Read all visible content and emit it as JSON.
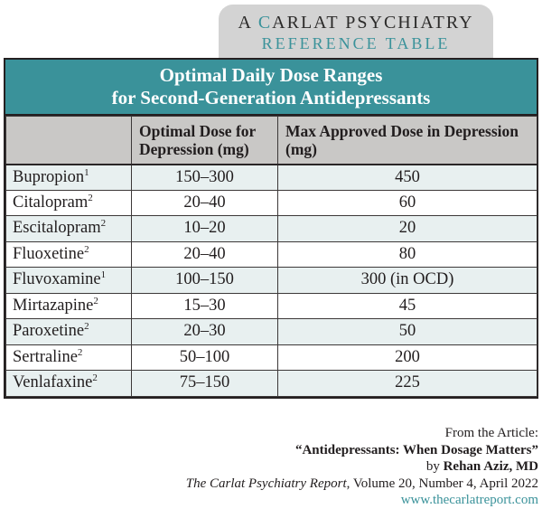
{
  "badge": {
    "line1_prefix": "A ",
    "line1_c": "C",
    "line1_rest": "ARLAT PSYCHIATRY",
    "line2": "REFERENCE TABLE"
  },
  "table": {
    "title_line1": "Optimal Daily Dose Ranges",
    "title_line2": "for Second-Generation Antidepressants",
    "columns": [
      "",
      "Optimal Dose for Depression (mg)",
      "Max Approved Dose in Depression (mg)"
    ],
    "rows": [
      {
        "name": "Bupropion",
        "sup": "1",
        "optimal": "150–300",
        "max": "450"
      },
      {
        "name": "Citalopram",
        "sup": "2",
        "optimal": "20–40",
        "max": "60"
      },
      {
        "name": "Escitalopram",
        "sup": "2",
        "optimal": "10–20",
        "max": "20"
      },
      {
        "name": "Fluoxetine",
        "sup": "2",
        "optimal": "20–40",
        "max": "80"
      },
      {
        "name": "Fluvoxamine",
        "sup": "1",
        "optimal": "100–150",
        "max": "300 (in OCD)"
      },
      {
        "name": "Mirtazapine",
        "sup": "2",
        "optimal": "15–30",
        "max": "45"
      },
      {
        "name": "Paroxetine",
        "sup": "2",
        "optimal": "20–30",
        "max": "50"
      },
      {
        "name": "Sertraline",
        "sup": "2",
        "optimal": "50–100",
        "max": "200"
      },
      {
        "name": "Venlafaxine",
        "sup": "2",
        "optimal": "75–150",
        "max": "225"
      }
    ]
  },
  "footer": {
    "from_line": "From the Article:",
    "article_title": "“Antidepressants: When Dosage Matters”",
    "by_prefix": "by ",
    "author": "Rehan Aziz, MD",
    "journal": "The Carlat Psychiatry Report",
    "issue": ", Volume 20, Number 4, April 2022",
    "url": "www.thecarlatreport.com"
  },
  "colors": {
    "teal": "#3a929a",
    "badge_bg": "#d3d3d3",
    "header_bg": "#c9c8c6",
    "row_tint": "#e8f0f0",
    "border_dark": "#242021"
  }
}
